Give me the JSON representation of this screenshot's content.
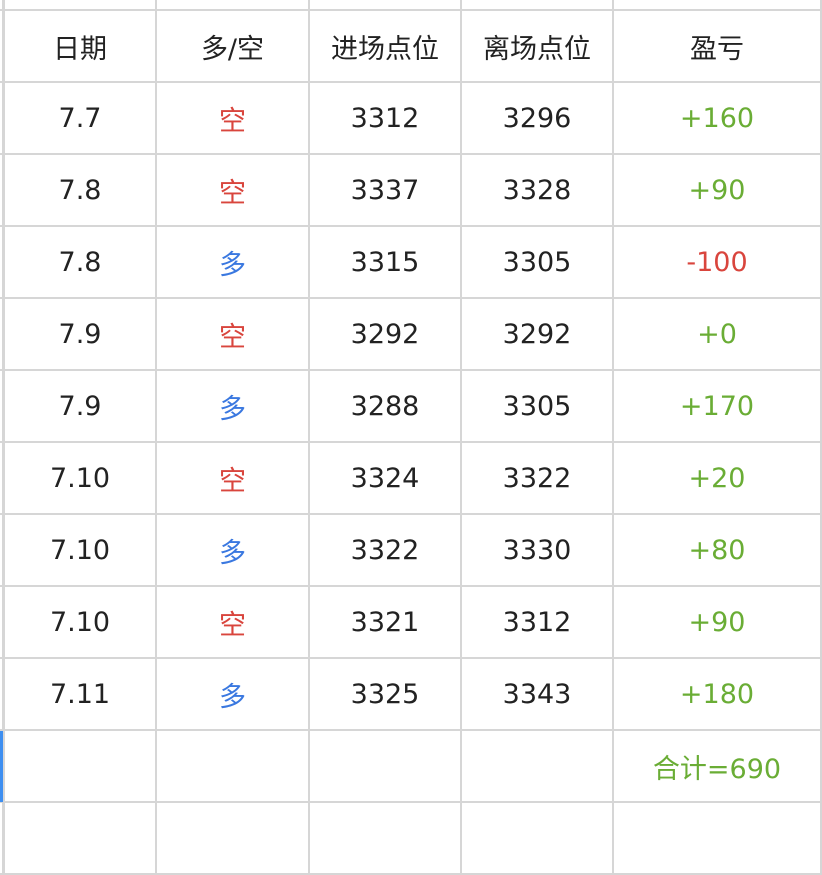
{
  "colors": {
    "short": "#d9453d",
    "long": "#3a78e0",
    "profit": "#6aad35",
    "loss": "#d9453d",
    "text": "#222222",
    "grid": "#d6d6d6",
    "selection": "#3d8ef0"
  },
  "headers": [
    "日期",
    "多/空",
    "进场点位",
    "离场点位",
    "盈亏"
  ],
  "rows": [
    {
      "date": "7.7",
      "side": "空",
      "entry": "3312",
      "exit": "3296",
      "pnl": "+160"
    },
    {
      "date": "7.8",
      "side": "空",
      "entry": "3337",
      "exit": "3328",
      "pnl": "+90"
    },
    {
      "date": "7.8",
      "side": "多",
      "entry": "3315",
      "exit": "3305",
      "pnl": "-100"
    },
    {
      "date": "7.9",
      "side": "空",
      "entry": "3292",
      "exit": "3292",
      "pnl": "+0"
    },
    {
      "date": "7.9",
      "side": "多",
      "entry": "3288",
      "exit": "3305",
      "pnl": "+170"
    },
    {
      "date": "7.10",
      "side": "空",
      "entry": "3324",
      "exit": "3322",
      "pnl": "+20"
    },
    {
      "date": "7.10",
      "side": "多",
      "entry": "3322",
      "exit": "3330",
      "pnl": "+80"
    },
    {
      "date": "7.10",
      "side": "空",
      "entry": "3321",
      "exit": "3312",
      "pnl": "+90"
    },
    {
      "date": "7.11",
      "side": "多",
      "entry": "3325",
      "exit": "3343",
      "pnl": "+180"
    }
  ],
  "total": "合计=690"
}
